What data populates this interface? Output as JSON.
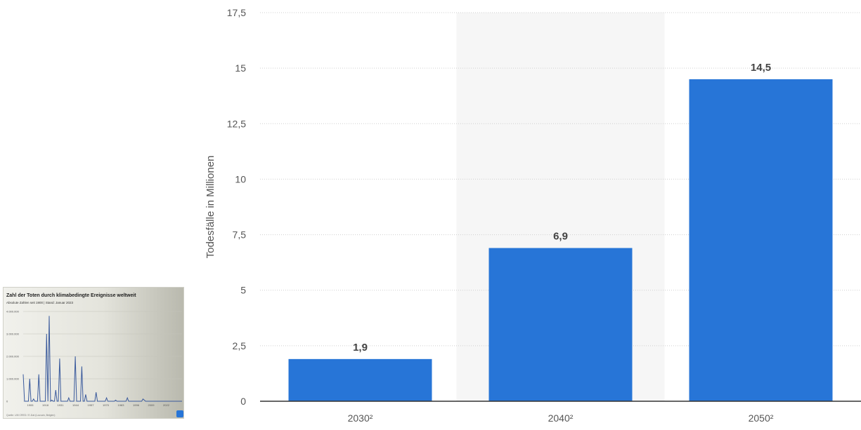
{
  "chart_data": {
    "type": "bar",
    "categories": [
      "2030²",
      "2040²",
      "2050²"
    ],
    "values": [
      1.9,
      6.9,
      14.5
    ],
    "value_labels": [
      "1,9",
      "6,9",
      "14,5"
    ],
    "title": "",
    "xlabel": "",
    "ylabel": "Todesfälle in Millionen",
    "ylim": [
      0,
      17.5
    ],
    "yticks": [
      0,
      2.5,
      5,
      7.5,
      10,
      12.5,
      15,
      17.5
    ],
    "ytick_labels": [
      "0",
      "2,5",
      "5",
      "7,5",
      "10",
      "12,5",
      "15",
      "17,5"
    ],
    "grid": true,
    "highlighted_category": "2040²",
    "colors": {
      "bar": "#2775d7",
      "highlight_band": "#f6f6f6",
      "grid": "#cfcfcf",
      "axis": "#333333",
      "tick_text": "#555555",
      "label_text": "#444444"
    }
  },
  "thumbnail": {
    "title": "Zahl der Toten durch klimabedingte Ereignisse weltweit",
    "subtitle": "Absolute Zahlen seit 1900 | Stand: Januar 2023",
    "source": "Quelle: UM CRED / E-Dat (Louvain, Belgien)",
    "ytick_labels": [
      "4.000.000",
      "3.000.000",
      "2.000.000",
      "1.000.000",
      "0"
    ],
    "xtick_labels": [
      "1905",
      "1918",
      "1931",
      "1944",
      "1957",
      "1970",
      "1983",
      "1996",
      "2009",
      "2022"
    ],
    "series": [
      1200000,
      0,
      0,
      0,
      0,
      1000000,
      0,
      0,
      100000,
      0,
      0,
      0,
      1200000,
      0,
      0,
      0,
      0,
      0,
      3000000,
      0,
      3800000,
      0,
      50000,
      0,
      0,
      500000,
      0,
      0,
      1900000,
      0,
      0,
      0,
      0,
      0,
      0,
      150000,
      0,
      0,
      0,
      0,
      2000000,
      0,
      0,
      0,
      0,
      1550000,
      0,
      0,
      300000,
      0,
      0,
      0,
      0,
      0,
      0,
      0,
      400000,
      0,
      0,
      0,
      0,
      0,
      0,
      0,
      150000,
      0,
      0,
      0,
      0,
      0,
      0,
      50000,
      0,
      0,
      0,
      0,
      0,
      0,
      0,
      0,
      150000,
      0,
      0,
      0,
      0,
      0,
      0,
      0,
      0,
      0,
      0,
      0,
      100000,
      50000,
      0,
      0,
      0,
      0,
      0,
      0,
      0,
      0,
      0,
      0,
      0,
      0,
      0,
      0,
      0,
      0,
      0,
      0,
      0,
      0,
      0,
      0,
      0,
      0,
      0,
      0,
      0,
      0,
      0
    ],
    "line_color": "#3a5a9c"
  }
}
